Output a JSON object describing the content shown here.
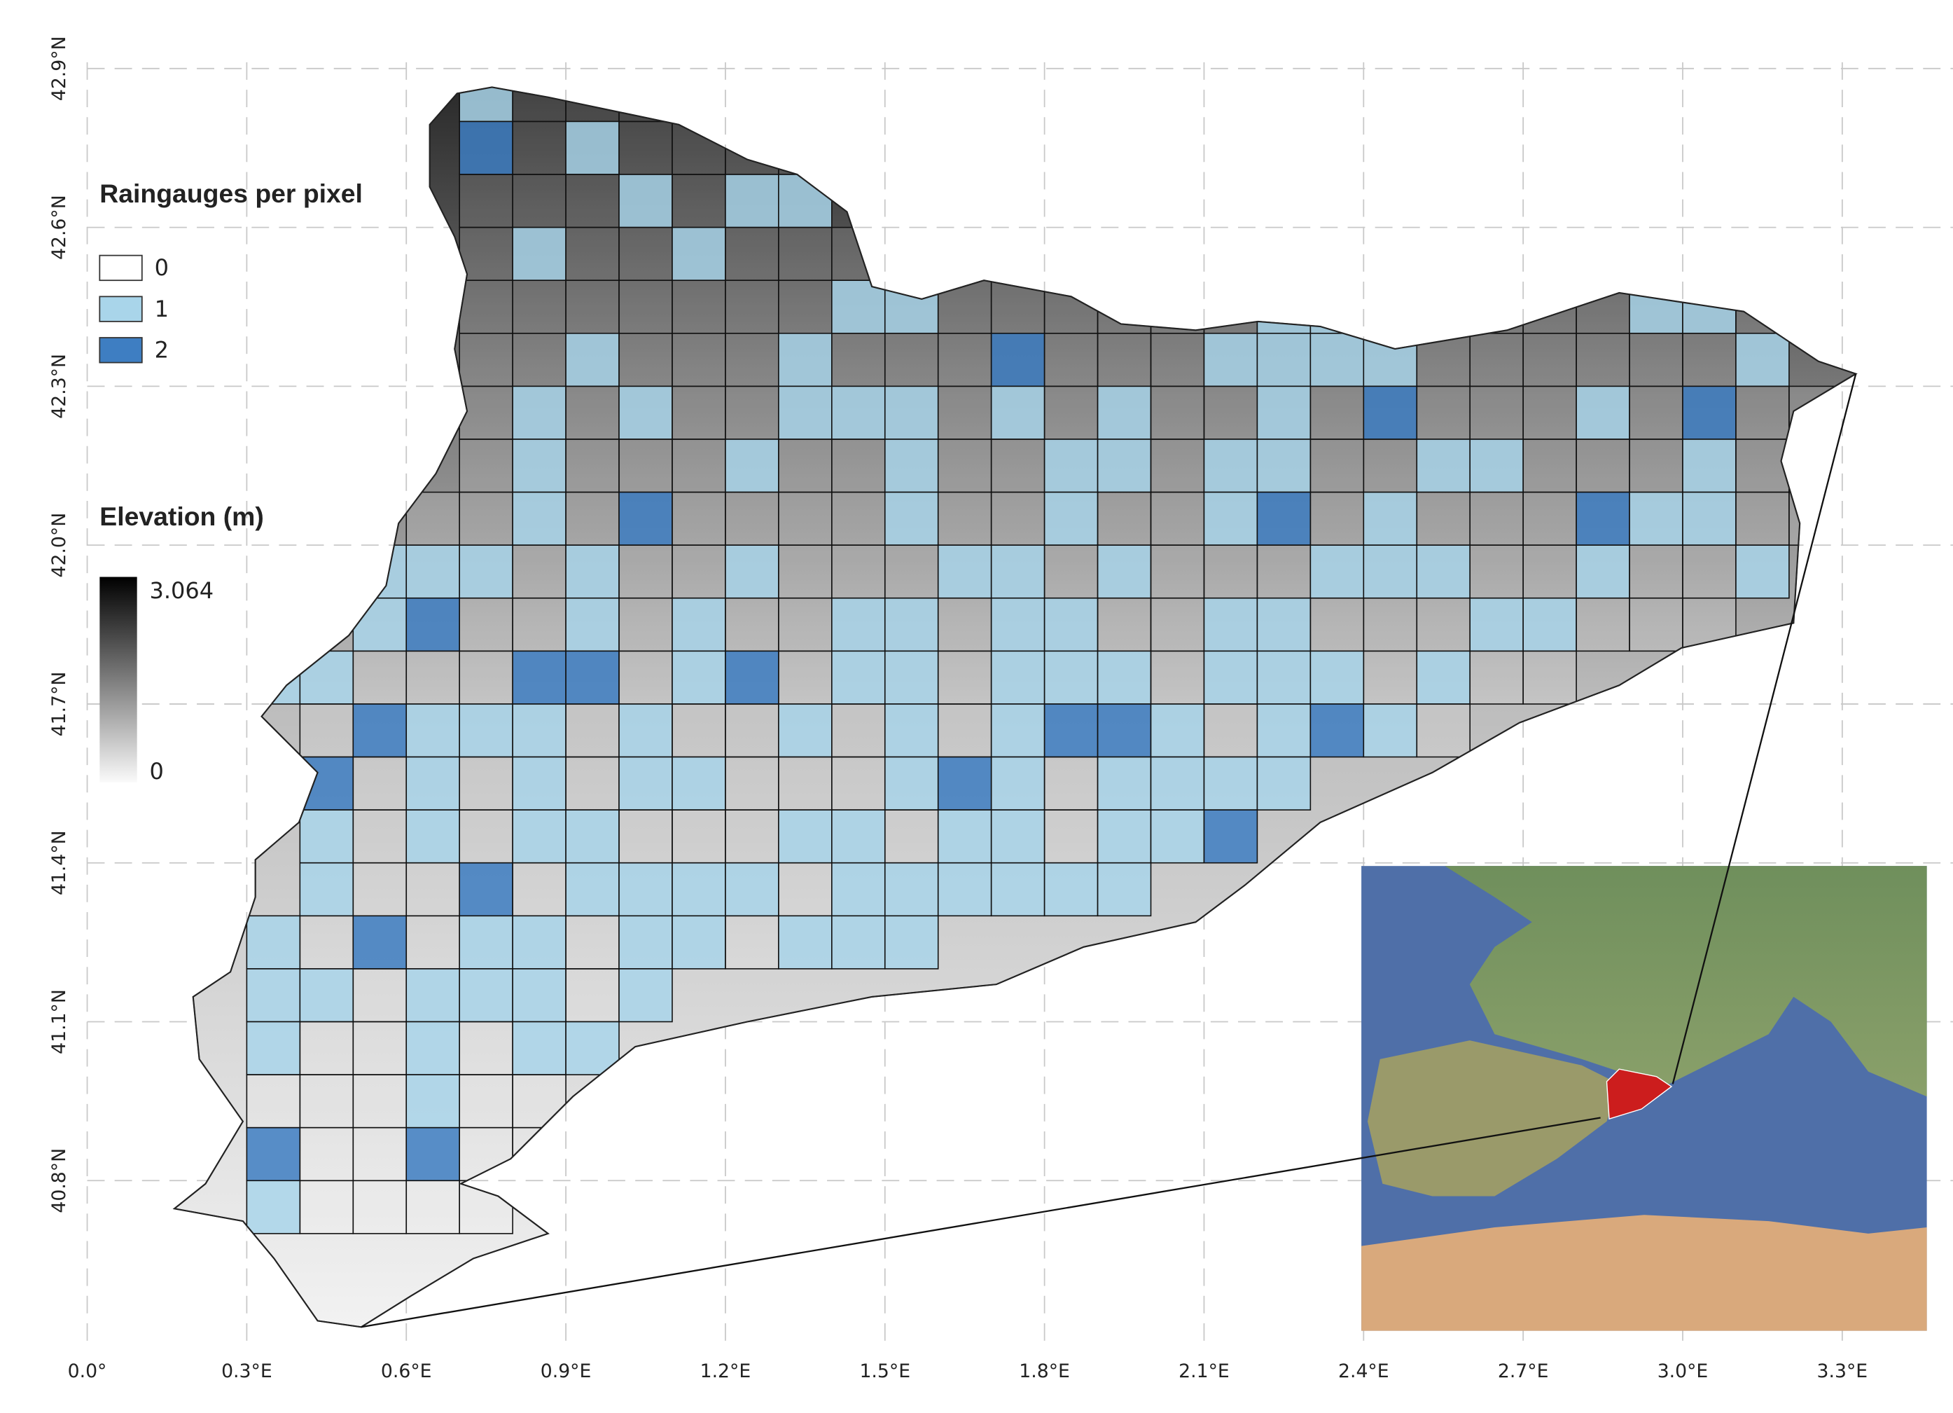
{
  "legend": {
    "raingauges": {
      "title": "Raingauges per pixel",
      "classes": [
        {
          "value": 0,
          "color": "#ffffff"
        },
        {
          "value": 1,
          "color": "#a9d5ea"
        },
        {
          "value": 2,
          "color": "#3e7ec2"
        }
      ]
    },
    "elevation": {
      "title": "Elevation (m)",
      "max": {
        "value": 3064,
        "label": "3.064"
      },
      "min": 0
    }
  },
  "x_ticks": [
    {
      "value": 0.0,
      "label": "0.0°"
    },
    {
      "value": 0.3,
      "label": "0.3°E"
    },
    {
      "value": 0.6,
      "label": "0.6°E"
    },
    {
      "value": 0.9,
      "label": "0.9°E"
    },
    {
      "value": 1.2,
      "label": "1.2°E"
    },
    {
      "value": 1.5,
      "label": "1.5°E"
    },
    {
      "value": 1.8,
      "label": "1.8°E"
    },
    {
      "value": 2.1,
      "label": "2.1°E"
    },
    {
      "value": 2.4,
      "label": "2.4°E"
    },
    {
      "value": 2.7,
      "label": "2.7°E"
    },
    {
      "value": 3.0,
      "label": "3.0°E"
    },
    {
      "value": 3.3,
      "label": "3.3°E"
    }
  ],
  "y_ticks": [
    {
      "value": 40.8,
      "label": "40.8°N"
    },
    {
      "value": 41.1,
      "label": "41.1°N"
    },
    {
      "value": 41.4,
      "label": "41.4°N"
    },
    {
      "value": 41.7,
      "label": "41.7°N"
    },
    {
      "value": 42.0,
      "label": "42.0°N"
    },
    {
      "value": 42.3,
      "label": "42.3°N"
    },
    {
      "value": 42.6,
      "label": "42.6°N"
    },
    {
      "value": 42.9,
      "label": "42.9°N"
    }
  ],
  "cells": [
    {
      "lat": 42.8,
      "lon": 0.7,
      "counts": [
        1,
        0,
        0,
        0,
        0
      ]
    },
    {
      "lat": 42.7,
      "lon": 0.7,
      "counts": [
        2,
        0,
        1,
        0,
        0,
        0,
        0,
        0
      ]
    },
    {
      "lat": 42.6,
      "lon": 0.7,
      "counts": [
        0,
        0,
        0,
        1,
        0,
        1,
        1
      ]
    },
    {
      "lat": 42.5,
      "lon": 0.7,
      "counts": [
        0,
        1,
        0,
        0,
        1,
        0,
        0,
        0,
        0,
        0,
        1,
        0,
        0,
        0
      ]
    },
    {
      "lat": 42.4,
      "lon": 0.7,
      "counts": [
        0,
        0,
        0,
        0,
        0,
        0,
        0,
        1,
        1,
        0,
        0,
        0,
        0,
        0,
        0,
        1,
        1,
        0,
        1,
        0,
        0,
        0,
        1,
        1,
        0
      ]
    },
    {
      "lat": 42.3,
      "lon": 0.7,
      "counts": [
        0,
        0,
        1,
        0,
        0,
        0,
        1,
        0,
        0,
        0,
        2,
        0,
        0,
        0,
        1,
        1,
        1,
        1,
        0,
        0,
        0,
        0,
        0,
        0,
        1
      ]
    },
    {
      "lat": 42.2,
      "lon": 0.7,
      "counts": [
        0,
        1,
        0,
        1,
        0,
        0,
        1,
        1,
        1,
        0,
        1,
        0,
        1,
        0,
        0,
        1,
        0,
        2,
        0,
        0,
        0,
        1,
        0,
        2,
        0,
        0
      ]
    },
    {
      "lat": 42.1,
      "lon": 0.7,
      "counts": [
        0,
        1,
        0,
        0,
        0,
        1,
        0,
        0,
        1,
        0,
        0,
        1,
        1,
        0,
        1,
        1,
        0,
        0,
        1,
        1,
        0,
        0,
        0,
        1,
        0,
        1
      ]
    },
    {
      "lat": 42.0,
      "lon": 0.6,
      "counts": [
        0,
        0,
        1,
        0,
        2,
        0,
        0,
        0,
        0,
        1,
        0,
        0,
        1,
        0,
        0,
        1,
        2,
        0,
        1,
        0,
        0,
        0,
        2,
        1,
        1,
        0,
        0
      ]
    },
    {
      "lat": 41.9,
      "lon": 0.5,
      "counts": [
        1,
        1,
        1,
        0,
        1,
        0,
        0,
        1,
        0,
        0,
        0,
        1,
        1,
        0,
        1,
        0,
        0,
        0,
        1,
        1,
        1,
        0,
        0,
        1,
        0,
        0,
        1
      ]
    },
    {
      "lat": 41.8,
      "lon": 0.5,
      "counts": [
        1,
        2,
        0,
        0,
        1,
        0,
        1,
        0,
        0,
        1,
        1,
        0,
        1,
        1,
        0,
        0,
        1,
        1,
        0,
        0,
        0,
        1,
        1,
        0,
        0,
        0
      ]
    },
    {
      "lat": 41.7,
      "lon": 0.3,
      "counts": [
        1,
        1,
        0,
        0,
        0,
        2,
        2,
        0,
        1,
        2,
        0,
        1,
        1,
        0,
        1,
        1,
        1,
        0,
        1,
        1,
        1,
        0,
        1,
        0,
        0
      ]
    },
    {
      "lat": 41.6,
      "lon": 0.4,
      "counts": [
        0,
        2,
        1,
        1,
        1,
        0,
        1,
        0,
        0,
        1,
        0,
        1,
        0,
        1,
        2,
        2,
        1,
        0,
        1,
        2,
        1,
        0
      ]
    },
    {
      "lat": 41.5,
      "lon": 0.4,
      "counts": [
        2,
        0,
        1,
        0,
        1,
        0,
        1,
        1,
        0,
        0,
        0,
        1,
        2,
        1,
        0,
        1,
        1,
        1,
        1
      ]
    },
    {
      "lat": 41.4,
      "lon": 0.4,
      "counts": [
        1,
        0,
        1,
        0,
        1,
        1,
        0,
        0,
        0,
        1,
        1,
        0,
        1,
        1,
        0,
        1,
        1,
        2
      ]
    },
    {
      "lat": 41.3,
      "lon": 0.4,
      "counts": [
        1,
        0,
        0,
        2,
        0,
        1,
        1,
        1,
        1,
        0,
        1,
        1,
        1,
        1,
        1,
        1
      ]
    },
    {
      "lat": 41.2,
      "lon": 0.3,
      "counts": [
        1,
        0,
        2,
        0,
        1,
        1,
        0,
        1,
        1,
        0,
        1,
        1,
        1
      ]
    },
    {
      "lat": 41.1,
      "lon": 0.3,
      "counts": [
        1,
        1,
        0,
        1,
        1,
        1,
        0,
        1
      ]
    },
    {
      "lat": 41.0,
      "lon": 0.3,
      "counts": [
        1,
        0,
        0,
        1,
        0,
        1,
        1
      ]
    },
    {
      "lat": 40.9,
      "lon": 0.3,
      "counts": [
        0,
        0,
        0,
        1,
        0,
        0
      ]
    },
    {
      "lat": 40.8,
      "lon": 0.3,
      "counts": [
        2,
        0,
        0,
        2,
        0,
        0
      ]
    },
    {
      "lat": 40.7,
      "lon": 0.3,
      "counts": [
        1,
        0,
        0,
        0,
        0
      ]
    }
  ]
}
